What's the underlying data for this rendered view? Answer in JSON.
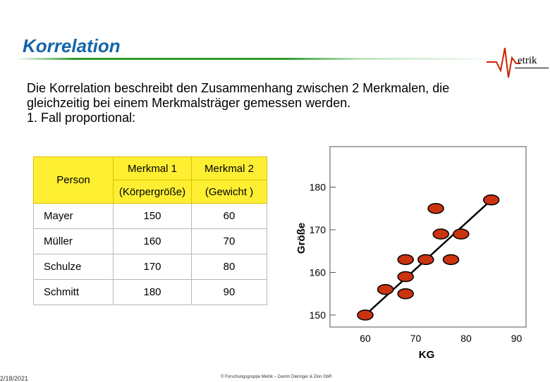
{
  "title": "Korrelation",
  "logo": {
    "text": "etrik"
  },
  "intro": {
    "line1": "Die Korrelation beschreibt den Zusammenhang zwischen 2 Merkmalen, die",
    "line2": "gleichzeitig bei einem Merkmalsträger gemessen werden.",
    "line3": "1. Fall proportional:"
  },
  "table": {
    "header": {
      "person": "Person",
      "col1_line1": "Merkmal 1",
      "col1_line2": "(Körpergröße)",
      "col2_line1": "Merkmal 2",
      "col2_line2": "(Gewicht )"
    },
    "rows": [
      {
        "name": "Mayer",
        "m1": "150",
        "m2": "60"
      },
      {
        "name": "Müller",
        "m1": "160",
        "m2": "70"
      },
      {
        "name": "Schulze",
        "m1": "170",
        "m2": "80"
      },
      {
        "name": "Schmitt",
        "m1": "180",
        "m2": "90"
      }
    ]
  },
  "chart_data": {
    "type": "scatter",
    "xlabel": "KG",
    "ylabel": "Größe",
    "xticks": [
      "60",
      "70",
      "80",
      "90"
    ],
    "yticks": [
      "150",
      "160",
      "170",
      "180"
    ],
    "xlim": [
      55,
      90
    ],
    "ylim": [
      150,
      180
    ],
    "points": [
      {
        "x": 60,
        "y": 150
      },
      {
        "x": 64,
        "y": 156
      },
      {
        "x": 68,
        "y": 155
      },
      {
        "x": 68,
        "y": 159
      },
      {
        "x": 68,
        "y": 163
      },
      {
        "x": 72,
        "y": 163
      },
      {
        "x": 77,
        "y": 163
      },
      {
        "x": 75,
        "y": 169
      },
      {
        "x": 79,
        "y": 169
      },
      {
        "x": 74,
        "y": 175
      },
      {
        "x": 85,
        "y": 177
      }
    ],
    "trendline": {
      "x": [
        60,
        85
      ],
      "y": [
        150,
        177
      ]
    },
    "marker_color": "#cc3311",
    "grid": false,
    "legend": "none"
  },
  "footer": {
    "date": "2/18/2021",
    "copyright": "© Forschungsgruppe Metrik – Damm Dieringer & Zinn GbR"
  }
}
